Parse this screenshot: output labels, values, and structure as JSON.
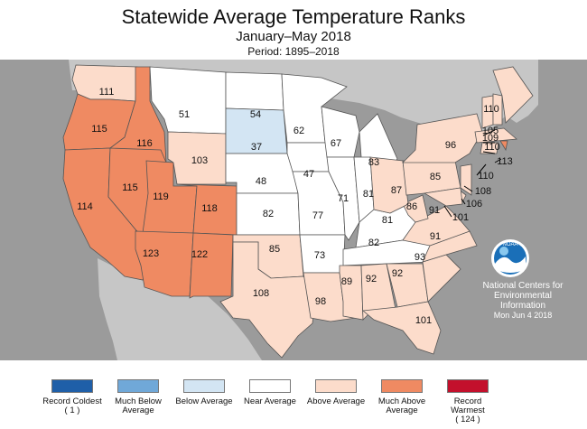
{
  "header": {
    "title": "Statewide Average Temperature Ranks",
    "subtitle": "January–May 2018",
    "period": "Period: 1895–2018"
  },
  "colors": {
    "record_coldest": "#1f5fa8",
    "much_below": "#70a8d8",
    "below": "#d3e5f3",
    "near": "#ffffff",
    "above": "#fcdccb",
    "much_above": "#ef8a62",
    "record_warmest": "#c3102c",
    "ocean_background": "#9b9b9b",
    "non_us_land": "#c6c6c6"
  },
  "states": [
    {
      "code": "WA",
      "rank": "111",
      "category": "above"
    },
    {
      "code": "OR",
      "rank": "115",
      "category": "much_above"
    },
    {
      "code": "CA",
      "rank": "114",
      "category": "much_above"
    },
    {
      "code": "ID",
      "rank": "116",
      "category": "much_above"
    },
    {
      "code": "NV",
      "rank": "115",
      "category": "much_above"
    },
    {
      "code": "UT",
      "rank": "119",
      "category": "much_above"
    },
    {
      "code": "AZ",
      "rank": "123",
      "category": "much_above"
    },
    {
      "code": "MT",
      "rank": "51",
      "category": "near"
    },
    {
      "code": "WY",
      "rank": "103",
      "category": "above"
    },
    {
      "code": "CO",
      "rank": "118",
      "category": "much_above"
    },
    {
      "code": "NM",
      "rank": "122",
      "category": "much_above"
    },
    {
      "code": "ND",
      "rank": "54",
      "category": "near"
    },
    {
      "code": "SD",
      "rank": "37",
      "category": "below"
    },
    {
      "code": "NE",
      "rank": "48",
      "category": "near"
    },
    {
      "code": "KS",
      "rank": "82",
      "category": "near"
    },
    {
      "code": "OK",
      "rank": "85",
      "category": "above"
    },
    {
      "code": "TX",
      "rank": "108",
      "category": "above"
    },
    {
      "code": "MN",
      "rank": "62",
      "category": "near"
    },
    {
      "code": "IA",
      "rank": "47",
      "category": "near"
    },
    {
      "code": "MO",
      "rank": "77",
      "category": "near"
    },
    {
      "code": "AR",
      "rank": "73",
      "category": "near"
    },
    {
      "code": "LA",
      "rank": "98",
      "category": "above"
    },
    {
      "code": "WI",
      "rank": "67",
      "category": "near"
    },
    {
      "code": "IL",
      "rank": "71",
      "category": "near"
    },
    {
      "code": "MI",
      "rank": "83",
      "category": "near"
    },
    {
      "code": "IN",
      "rank": "81",
      "category": "near"
    },
    {
      "code": "KY",
      "rank": "81",
      "category": "near"
    },
    {
      "code": "TN",
      "rank": "82",
      "category": "near"
    },
    {
      "code": "MS",
      "rank": "89",
      "category": "above"
    },
    {
      "code": "AL",
      "rank": "92",
      "category": "above"
    },
    {
      "code": "GA",
      "rank": "92",
      "category": "above"
    },
    {
      "code": "FL",
      "rank": "101",
      "category": "above"
    },
    {
      "code": "SC",
      "rank": "93",
      "category": "above"
    },
    {
      "code": "NC",
      "rank": "91",
      "category": "above"
    },
    {
      "code": "VA",
      "rank": "91",
      "category": "above"
    },
    {
      "code": "WV",
      "rank": "86",
      "category": "above"
    },
    {
      "code": "OH",
      "rank": "87",
      "category": "above"
    },
    {
      "code": "PA",
      "rank": "85",
      "category": "above"
    },
    {
      "code": "NY",
      "rank": "96",
      "category": "above"
    },
    {
      "code": "VT",
      "rank": "105",
      "category": "above"
    },
    {
      "code": "NH",
      "rank": "109",
      "category": "above"
    },
    {
      "code": "ME",
      "rank": "110",
      "category": "above"
    },
    {
      "code": "MA",
      "rank": "110",
      "category": "above"
    },
    {
      "code": "RI",
      "rank": "113",
      "category": "much_above"
    },
    {
      "code": "CT",
      "rank": "110",
      "category": "above"
    },
    {
      "code": "NJ",
      "rank": "108",
      "category": "above"
    },
    {
      "code": "DE",
      "rank": "106",
      "category": "above"
    },
    {
      "code": "MD",
      "rank": "101",
      "category": "above"
    }
  ],
  "legend": [
    {
      "label": "Record Coldest",
      "count": "( 1 )",
      "category": "record_coldest"
    },
    {
      "label": "Much Below Average",
      "count": "",
      "category": "much_below"
    },
    {
      "label": "Below Average",
      "count": "",
      "category": "below"
    },
    {
      "label": "Near Average",
      "count": "",
      "category": "near"
    },
    {
      "label": "Above Average",
      "count": "",
      "category": "above"
    },
    {
      "label": "Much Above Average",
      "count": "",
      "category": "much_above"
    },
    {
      "label": "Record Warmest",
      "count": "( 124 )",
      "category": "record_warmest"
    }
  ],
  "credit": {
    "logo_text": "NOAA",
    "org": "National Centers for Environmental Information",
    "date": "Mon Jun  4 2018"
  }
}
